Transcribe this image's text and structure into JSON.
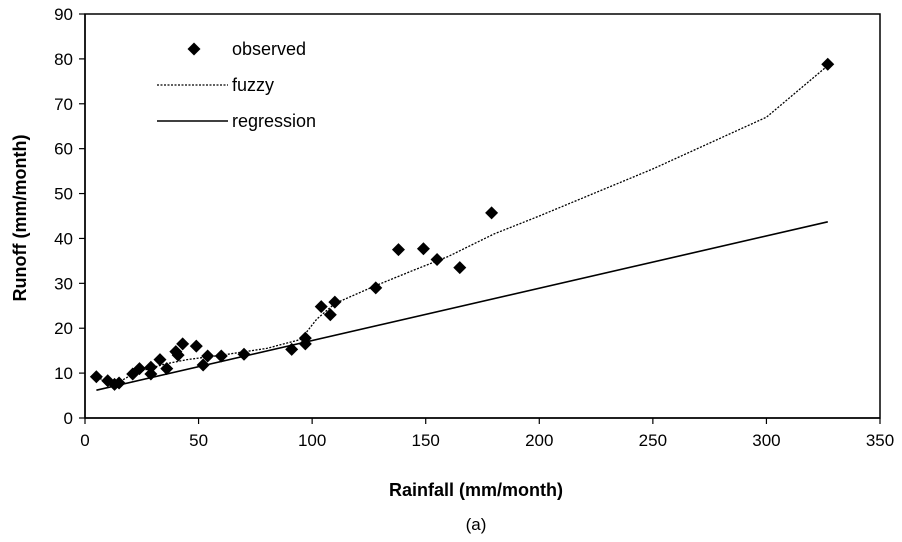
{
  "chart_data": {
    "type": "scatter",
    "caption": "(a)",
    "xlabel": "Rainfall (mm/month)",
    "ylabel": "Runoff (mm/month)",
    "xlim": [
      0,
      350
    ],
    "ylim": [
      0,
      90
    ],
    "x_ticks": [
      0,
      50,
      100,
      150,
      200,
      250,
      300,
      350
    ],
    "y_ticks": [
      0,
      10,
      20,
      30,
      40,
      50,
      60,
      70,
      80,
      90
    ],
    "grid": false,
    "legend_position": "top-left",
    "series": [
      {
        "name": "observed",
        "kind": "markers",
        "marker": "diamond",
        "points": [
          [
            5,
            9.2
          ],
          [
            10,
            8.3
          ],
          [
            13,
            7.5
          ],
          [
            15,
            7.8
          ],
          [
            21,
            9.8
          ],
          [
            24,
            11
          ],
          [
            29,
            9.8
          ],
          [
            29,
            11.3
          ],
          [
            33,
            13
          ],
          [
            36,
            11
          ],
          [
            40,
            14.8
          ],
          [
            41,
            14
          ],
          [
            43,
            16.5
          ],
          [
            49,
            16
          ],
          [
            52,
            11.8
          ],
          [
            54,
            13.8
          ],
          [
            60,
            13.8
          ],
          [
            70,
            14.2
          ],
          [
            91,
            15.3
          ],
          [
            97,
            17.8
          ],
          [
            97,
            16.5
          ],
          [
            104,
            24.8
          ],
          [
            108,
            23
          ],
          [
            110,
            25.8
          ],
          [
            128,
            29
          ],
          [
            138,
            37.5
          ],
          [
            149,
            37.7
          ],
          [
            155,
            35.3
          ],
          [
            165,
            33.5
          ],
          [
            179,
            45.7
          ],
          [
            327,
            78.8
          ]
        ]
      },
      {
        "name": "fuzzy",
        "kind": "line",
        "style": "dotted",
        "points": [
          [
            5,
            9
          ],
          [
            10,
            8.2
          ],
          [
            15,
            8
          ],
          [
            20,
            9.5
          ],
          [
            25,
            10.5
          ],
          [
            35,
            12
          ],
          [
            45,
            13
          ],
          [
            60,
            14
          ],
          [
            80,
            15.5
          ],
          [
            95,
            17.5
          ],
          [
            102,
            22
          ],
          [
            110,
            25.5
          ],
          [
            128,
            29.5
          ],
          [
            145,
            33
          ],
          [
            160,
            36
          ],
          [
            180,
            41
          ],
          [
            200,
            45
          ],
          [
            250,
            55.5
          ],
          [
            300,
            67
          ],
          [
            327,
            78.5
          ]
        ]
      },
      {
        "name": "regression",
        "kind": "line",
        "style": "solid",
        "points": [
          [
            5,
            6.2
          ],
          [
            327,
            43.7
          ]
        ]
      }
    ]
  }
}
